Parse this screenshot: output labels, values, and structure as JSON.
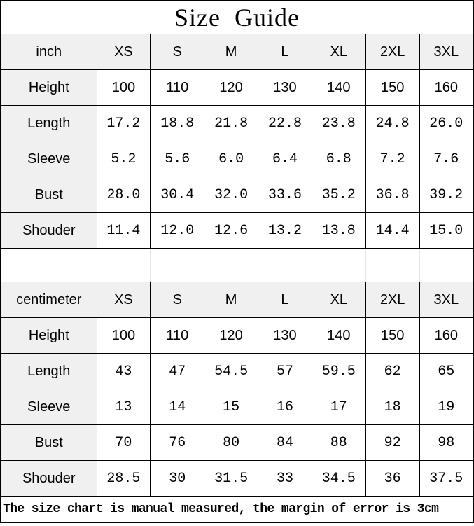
{
  "title": "Size Guide",
  "footer": {
    "note": "The size chart is manual measured, the margin of error is 3cm"
  },
  "colors": {
    "header_bg": "#f0f0f0",
    "border": "#000000",
    "spacer_line": "#e4e4e4",
    "text": "#000000",
    "background": "#ffffff"
  },
  "tables": [
    {
      "unit_label": "inch",
      "size_headers": [
        "XS",
        "S",
        "M",
        "L",
        "XL",
        "2XL",
        "3XL"
      ],
      "rows": [
        {
          "label": "Height",
          "values": [
            "100",
            "110",
            "120",
            "130",
            "140",
            "150",
            "160"
          ]
        },
        {
          "label": "Length",
          "values": [
            "17.2",
            "18.8",
            "21.8",
            "22.8",
            "23.8",
            "24.8",
            "26.0"
          ]
        },
        {
          "label": "Sleeve",
          "values": [
            "5.2",
            "5.6",
            "6.0",
            "6.4",
            "6.8",
            "7.2",
            "7.6"
          ]
        },
        {
          "label": "Bust",
          "values": [
            "28.0",
            "30.4",
            "32.0",
            "33.6",
            "35.2",
            "36.8",
            "39.2"
          ]
        },
        {
          "label": "Shouder",
          "values": [
            "11.4",
            "12.0",
            "12.6",
            "13.2",
            "13.8",
            "14.4",
            "15.0"
          ]
        }
      ]
    },
    {
      "unit_label": "centimeter",
      "size_headers": [
        "XS",
        "S",
        "M",
        "L",
        "XL",
        "2XL",
        "3XL"
      ],
      "rows": [
        {
          "label": "Height",
          "values": [
            "100",
            "110",
            "120",
            "130",
            "140",
            "150",
            "160"
          ]
        },
        {
          "label": "Length",
          "values": [
            "43",
            "47",
            "54.5",
            "57",
            "59.5",
            "62",
            "65"
          ]
        },
        {
          "label": "Sleeve",
          "values": [
            "13",
            "14",
            "15",
            "16",
            "17",
            "18",
            "19"
          ]
        },
        {
          "label": "Bust",
          "values": [
            "70",
            "76",
            "80",
            "84",
            "88",
            "92",
            "98"
          ]
        },
        {
          "label": "Shouder",
          "values": [
            "28.5",
            "30",
            "31.5",
            "33",
            "34.5",
            "36",
            "37.5"
          ]
        }
      ]
    }
  ]
}
